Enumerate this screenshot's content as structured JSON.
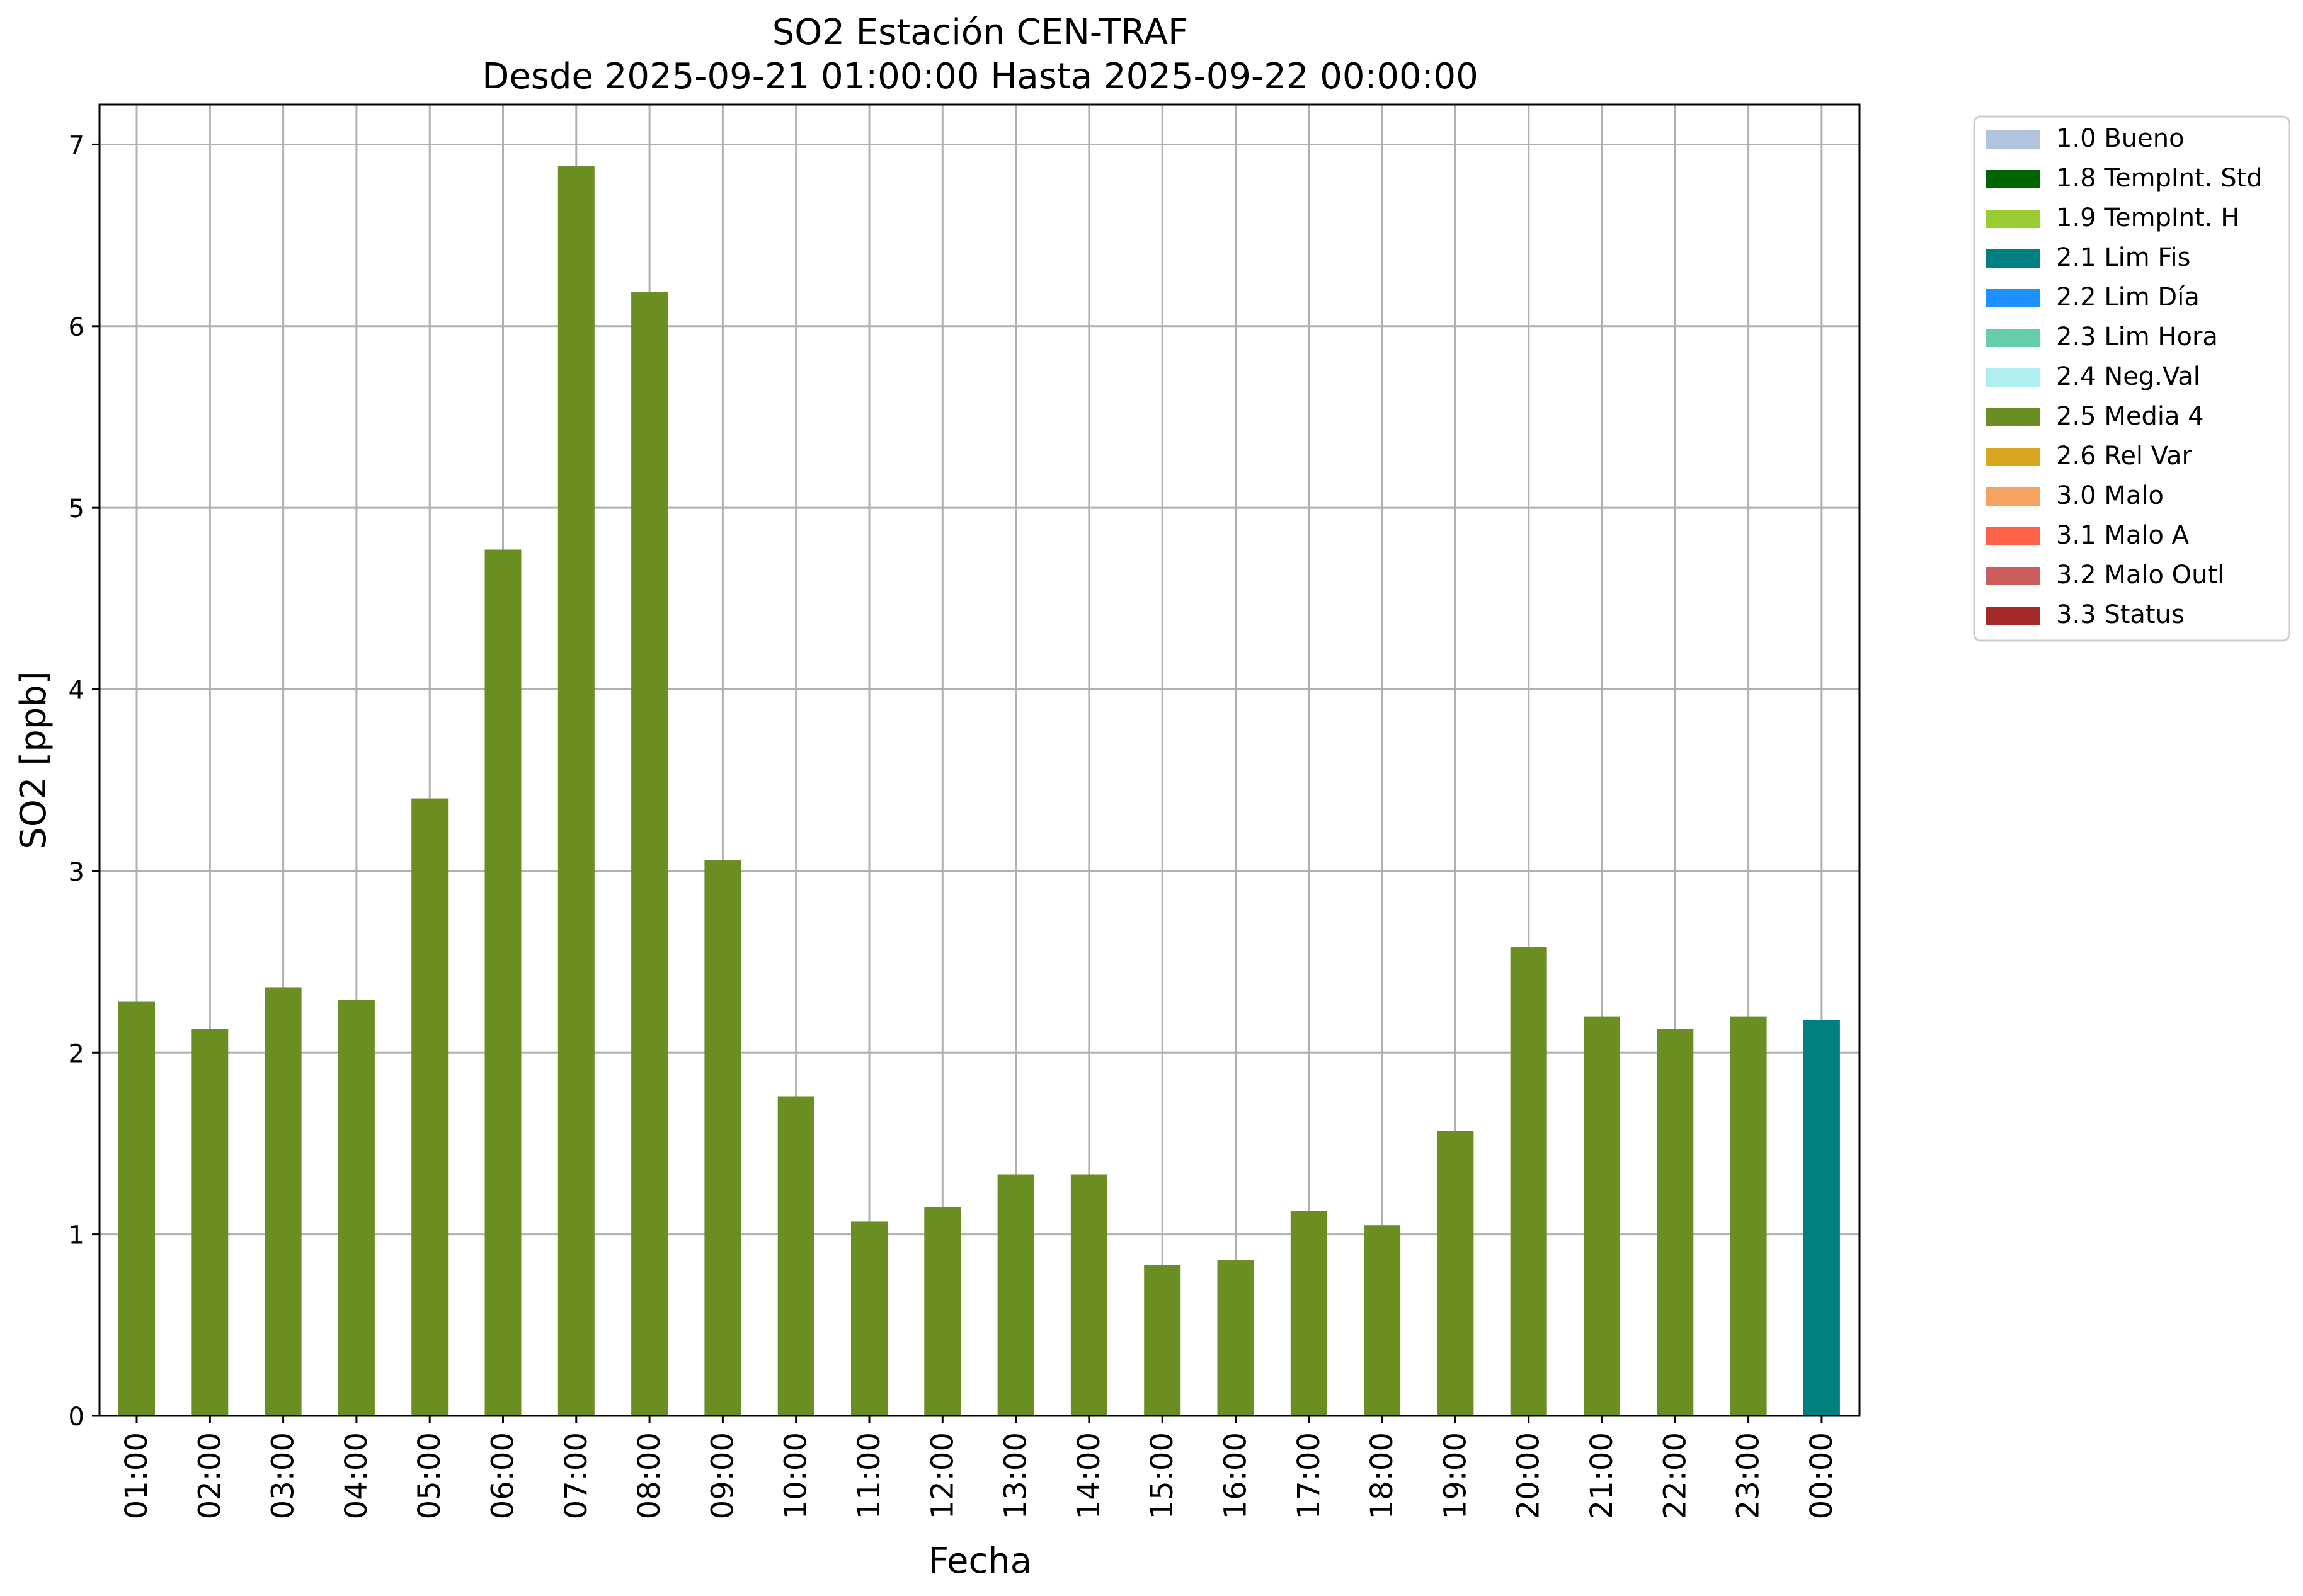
{
  "chart_data": {
    "type": "bar",
    "title": "SO2 Estación CEN-TRAF",
    "subtitle": "Desde 2025-09-21 01:00:00 Hasta 2025-09-22 00:00:00",
    "xlabel": "Fecha",
    "ylabel": "SO2 [ppb]",
    "ylim": [
      0,
      7.22
    ],
    "yticks": [
      "0",
      "1",
      "2",
      "3",
      "4",
      "5",
      "6",
      "7"
    ],
    "grid": true,
    "legend_position": "outside-top-right",
    "categories": [
      "01:00",
      "02:00",
      "03:00",
      "04:00",
      "05:00",
      "06:00",
      "07:00",
      "08:00",
      "09:00",
      "10:00",
      "11:00",
      "12:00",
      "13:00",
      "14:00",
      "15:00",
      "16:00",
      "17:00",
      "18:00",
      "19:00",
      "20:00",
      "21:00",
      "22:00",
      "23:00",
      "00:00"
    ],
    "values": [
      2.28,
      2.13,
      2.36,
      2.29,
      3.4,
      4.77,
      6.88,
      6.19,
      3.06,
      1.76,
      1.07,
      1.15,
      1.33,
      1.33,
      0.83,
      0.86,
      1.13,
      1.05,
      1.57,
      2.58,
      2.2,
      2.13,
      2.2,
      2.18
    ],
    "bar_flags": [
      "2.5 Media 4",
      "2.5 Media 4",
      "2.5 Media 4",
      "2.5 Media 4",
      "2.5 Media 4",
      "2.5 Media 4",
      "2.5 Media 4",
      "2.5 Media 4",
      "2.5 Media 4",
      "2.5 Media 4",
      "2.5 Media 4",
      "2.5 Media 4",
      "2.5 Media 4",
      "2.5 Media 4",
      "2.5 Media 4",
      "2.5 Media 4",
      "2.5 Media 4",
      "2.5 Media 4",
      "2.5 Media 4",
      "2.5 Media 4",
      "2.5 Media 4",
      "2.5 Media 4",
      "2.5 Media 4",
      "2.1 Lim Fis"
    ],
    "legend": [
      {
        "label": "1.0 Bueno",
        "color": "#b0c4de"
      },
      {
        "label": "1.8 TempInt. Std",
        "color": "#006400"
      },
      {
        "label": "1.9 TempInt. H",
        "color": "#9acd32"
      },
      {
        "label": "2.1 Lim Fis",
        "color": "#008080"
      },
      {
        "label": "2.2 Lim Día",
        "color": "#1e90ff"
      },
      {
        "label": "2.3 Lim Hora",
        "color": "#66cdaa"
      },
      {
        "label": "2.4 Neg.Val",
        "color": "#afeeee"
      },
      {
        "label": "2.5 Media 4",
        "color": "#6b8e23"
      },
      {
        "label": "2.6 Rel Var",
        "color": "#daa520"
      },
      {
        "label": "3.0 Malo",
        "color": "#f4a460"
      },
      {
        "label": "3.1 Malo A",
        "color": "#ff6347"
      },
      {
        "label": "3.2 Malo Outl",
        "color": "#cd5c5c"
      },
      {
        "label": "3.3 Status",
        "color": "#a52a2a"
      }
    ]
  }
}
